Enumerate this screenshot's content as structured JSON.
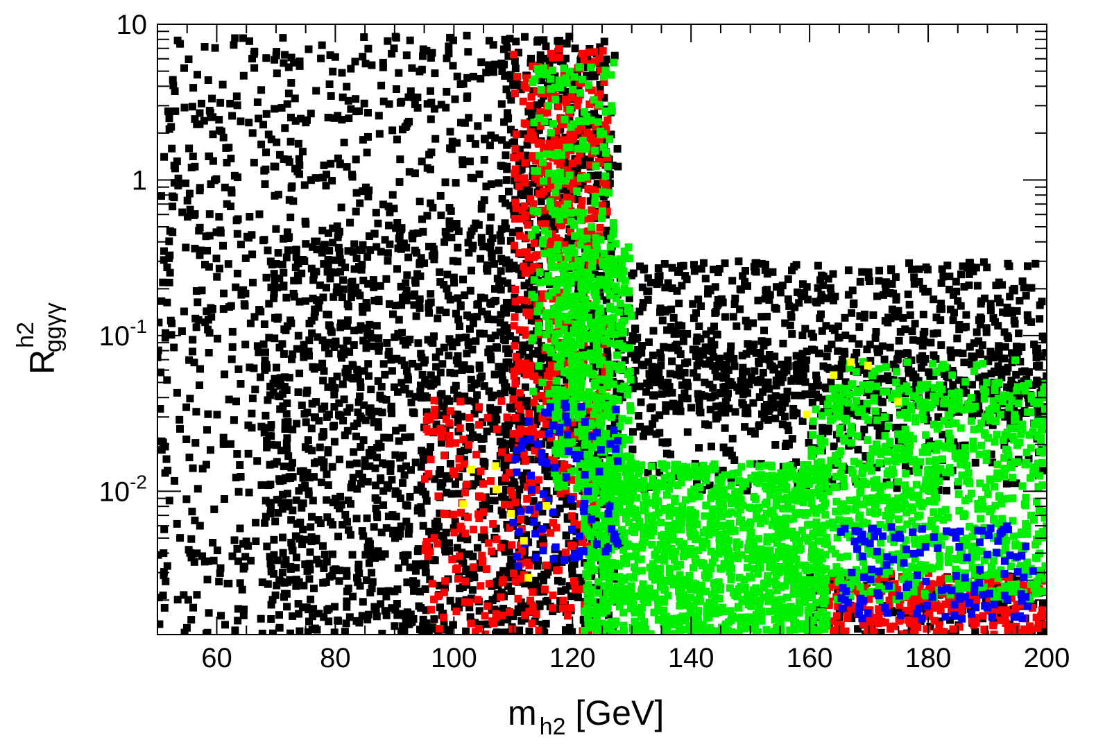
{
  "chart_data": {
    "type": "scatter",
    "title": "",
    "xlabel": {
      "main": "m",
      "sub": "h2",
      "unit": " [GeV]"
    },
    "ylabel": {
      "main": "R",
      "sup": "h2",
      "sub": "ggγγ"
    },
    "xlim": [
      50,
      200
    ],
    "ylim": [
      0.0012,
      10
    ],
    "yscale": "log",
    "grid": false,
    "legend": "none",
    "x_ticks": [
      {
        "value": 60,
        "label": "60"
      },
      {
        "value": 80,
        "label": "80"
      },
      {
        "value": 100,
        "label": "100"
      },
      {
        "value": 120,
        "label": "120"
      },
      {
        "value": 140,
        "label": "140"
      },
      {
        "value": 160,
        "label": "160"
      },
      {
        "value": 180,
        "label": "180"
      },
      {
        "value": 200,
        "label": "200"
      }
    ],
    "y_ticks": [
      {
        "value": 10,
        "base": "10",
        "exp": ""
      },
      {
        "value": 1,
        "base": "1",
        "exp": ""
      },
      {
        "value": 0.1,
        "base": "10",
        "exp": "-1"
      },
      {
        "value": 0.01,
        "base": "10",
        "exp": "-2"
      }
    ],
    "series": [
      {
        "color": "#000000",
        "regions": [
          {
            "x": [
              50,
              128
            ],
            "y": [
              0.0012,
              8.5
            ],
            "n": 1500
          },
          {
            "x": [
              68,
              112
            ],
            "y": [
              0.0012,
              0.5
            ],
            "n": 800
          },
          {
            "x": [
              108,
              126
            ],
            "y": [
              0.0012,
              8
            ],
            "n": 600
          },
          {
            "x": [
              126,
              200
            ],
            "y": [
              0.03,
              0.3
            ],
            "n": 800
          },
          {
            "x": [
              130,
              200
            ],
            "y": [
              0.01,
              0.08
            ],
            "n": 400
          },
          {
            "x": [
              160,
              200
            ],
            "y": [
              0.0012,
              0.003
            ],
            "n": 150
          }
        ]
      },
      {
        "color": "#ff0000",
        "regions": [
          {
            "x": [
              110,
              126
            ],
            "y": [
              0.02,
              7
            ],
            "n": 350
          },
          {
            "x": [
              95,
              124
            ],
            "y": [
              0.0012,
              0.04
            ],
            "n": 250
          },
          {
            "x": [
              163,
              200
            ],
            "y": [
              0.0012,
              0.003
            ],
            "n": 260
          },
          {
            "x": [
              112,
              125
            ],
            "y": [
              0.3,
              2
            ],
            "n": 80
          }
        ]
      },
      {
        "color": "#00ee00",
        "regions": [
          {
            "x": [
              113,
              127
            ],
            "y": [
              0.03,
              6
            ],
            "n": 260
          },
          {
            "x": [
              117,
              130
            ],
            "y": [
              0.01,
              0.4
            ],
            "n": 450
          },
          {
            "x": [
              122,
              163
            ],
            "y": [
              0.0012,
              0.015
            ],
            "n": 1300
          },
          {
            "x": [
              160,
              200
            ],
            "y": [
              0.002,
              0.05
            ],
            "n": 850
          },
          {
            "x": [
              165,
              200
            ],
            "y": [
              0.03,
              0.07
            ],
            "n": 60
          }
        ]
      },
      {
        "color": "#0000ff",
        "regions": [
          {
            "x": [
              110,
              128
            ],
            "y": [
              0.003,
              0.04
            ],
            "n": 90
          },
          {
            "x": [
              165,
              198
            ],
            "y": [
              0.0015,
              0.006
            ],
            "n": 130
          }
        ]
      },
      {
        "color": "#ffff00",
        "regions": [
          {
            "x": [
              100,
              120
            ],
            "y": [
              0.002,
              0.015
            ],
            "n": 8
          },
          {
            "x": [
              155,
              180
            ],
            "y": [
              0.02,
              0.07
            ],
            "n": 5
          }
        ]
      }
    ]
  }
}
